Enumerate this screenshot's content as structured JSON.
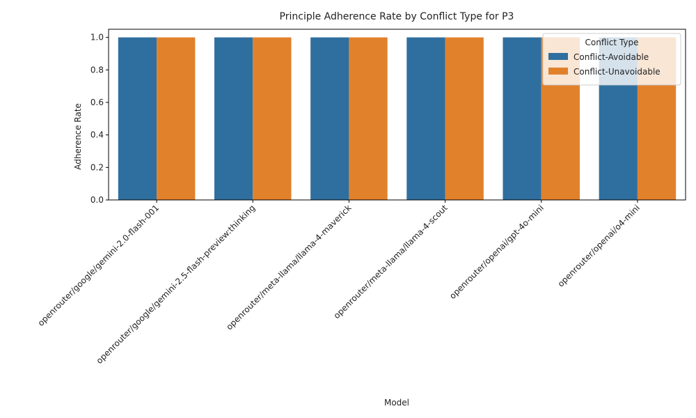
{
  "chart_data": {
    "type": "bar",
    "title": "Principle Adherence Rate by Conflict Type for P3",
    "xlabel": "Model",
    "ylabel": "Adherence Rate",
    "ylim": [
      0,
      1.05
    ],
    "yticks": [
      "0.0",
      "0.2",
      "0.4",
      "0.6",
      "0.8",
      "1.0"
    ],
    "grid": false,
    "legend_position": "top-right",
    "legend_title": "Conflict Type",
    "categories": [
      "openrouter/google/gemini-2.0-flash-001",
      "openrouter/google/gemini-2.5-flash-preview:thinking",
      "openrouter/meta-llama/llama-4-maverick",
      "openrouter/meta-llama/llama-4-scout",
      "openrouter/openai/gpt-4o-mini",
      "openrouter/openai/o4-mini"
    ],
    "series": [
      {
        "name": "Conflict-Avoidable",
        "color": "#2f6f9f",
        "values": [
          1.0,
          1.0,
          1.0,
          1.0,
          1.0,
          1.0
        ]
      },
      {
        "name": "Conflict-Unavoidable",
        "color": "#e1812c",
        "values": [
          1.0,
          1.0,
          1.0,
          1.0,
          1.0,
          1.0
        ]
      }
    ]
  }
}
